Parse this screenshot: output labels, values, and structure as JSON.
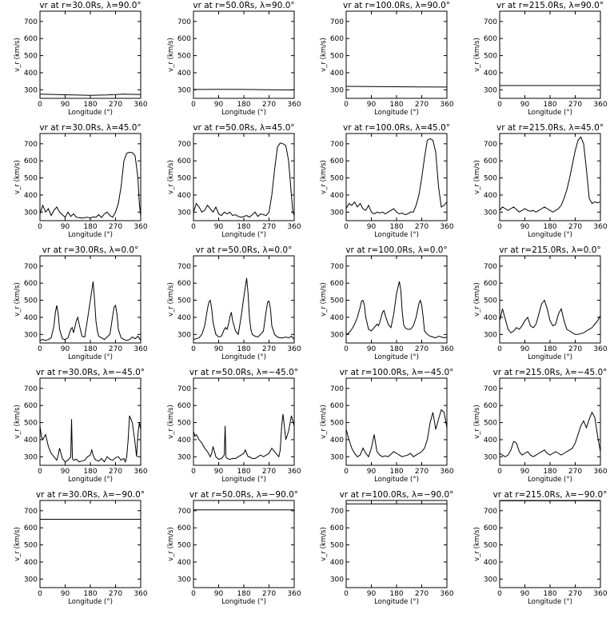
{
  "chart_data": {
    "type": "line",
    "figure": {
      "x_label": "Longitude (°)",
      "y_label": "v_r (km/s)",
      "x_range": [
        0,
        360
      ],
      "y_range": [
        250,
        760
      ],
      "x_ticks": [
        0,
        90,
        180,
        270,
        360
      ],
      "y_ticks": [
        300,
        400,
        500,
        600,
        700
      ],
      "line_color": "#000000"
    },
    "panels": [
      {
        "title": "vr at r=30.0Rs, λ=90.0°",
        "r": "30.0Rs",
        "lat": "90.0°",
        "x": [
          0,
          60,
          120,
          180,
          240,
          300,
          360
        ],
        "y": [
          275,
          272,
          270,
          268,
          270,
          275,
          272
        ]
      },
      {
        "title": "vr at r=50.0Rs, λ=90.0°",
        "r": "50.0Rs",
        "lat": "90.0°",
        "x": [
          0,
          90,
          180,
          270,
          360
        ],
        "y": [
          302,
          303,
          302,
          300,
          299
        ]
      },
      {
        "title": "vr at r=100.0Rs, λ=90.0°",
        "r": "100.0Rs",
        "lat": "90.0°",
        "x": [
          0,
          90,
          180,
          270,
          360
        ],
        "y": [
          320,
          319,
          318,
          317,
          316
        ]
      },
      {
        "title": "vr at r=215.0Rs, λ=90.0°",
        "r": "215.0Rs",
        "lat": "90.0°",
        "x": [
          0,
          360
        ],
        "y": [
          325,
          325
        ]
      },
      {
        "title": "vr at r=30.0Rs, λ=45.0°",
        "r": "30.0Rs",
        "lat": "45.0°",
        "x": [
          0,
          10,
          20,
          30,
          40,
          50,
          60,
          70,
          80,
          90,
          100,
          110,
          120,
          130,
          140,
          150,
          160,
          170,
          180,
          190,
          200,
          210,
          220,
          230,
          240,
          250,
          260,
          270,
          280,
          290,
          300,
          310,
          320,
          330,
          340,
          350,
          355,
          360
        ],
        "y": [
          290,
          340,
          300,
          320,
          280,
          310,
          330,
          300,
          285,
          270,
          300,
          275,
          290,
          270,
          268,
          265,
          268,
          270,
          265,
          272,
          270,
          285,
          268,
          290,
          300,
          280,
          270,
          300,
          350,
          450,
          600,
          645,
          650,
          648,
          630,
          500,
          350,
          275
        ]
      },
      {
        "title": "vr at r=50.0Rs, λ=45.0°",
        "r": "50.0Rs",
        "lat": "45.0°",
        "x": [
          0,
          10,
          20,
          30,
          40,
          50,
          60,
          70,
          80,
          90,
          100,
          110,
          120,
          130,
          140,
          150,
          160,
          170,
          180,
          190,
          200,
          210,
          220,
          230,
          240,
          250,
          260,
          270,
          280,
          290,
          300,
          310,
          320,
          330,
          340,
          350,
          355,
          360
        ],
        "y": [
          300,
          350,
          330,
          300,
          310,
          340,
          320,
          300,
          330,
          290,
          280,
          300,
          290,
          300,
          280,
          285,
          275,
          270,
          275,
          280,
          270,
          285,
          300,
          275,
          290,
          285,
          280,
          300,
          400,
          550,
          680,
          705,
          700,
          690,
          600,
          400,
          300,
          280
        ]
      },
      {
        "title": "vr at r=100.0Rs, λ=45.0°",
        "r": "100.0Rs",
        "lat": "45.0°",
        "x": [
          0,
          10,
          20,
          30,
          40,
          50,
          60,
          70,
          80,
          90,
          100,
          110,
          120,
          130,
          140,
          150,
          160,
          170,
          180,
          190,
          200,
          210,
          220,
          230,
          240,
          250,
          260,
          270,
          280,
          290,
          300,
          310,
          320,
          330,
          340,
          350,
          360
        ],
        "y": [
          320,
          350,
          340,
          360,
          330,
          350,
          320,
          310,
          340,
          300,
          290,
          300,
          295,
          300,
          290,
          300,
          310,
          320,
          300,
          290,
          295,
          285,
          290,
          300,
          300,
          340,
          400,
          500,
          620,
          720,
          730,
          720,
          650,
          450,
          330,
          340,
          360
        ]
      },
      {
        "title": "vr at r=215.0Rs, λ=45.0°",
        "r": "215.0Rs",
        "lat": "45.0°",
        "x": [
          0,
          10,
          20,
          30,
          40,
          50,
          60,
          70,
          80,
          90,
          100,
          110,
          120,
          130,
          140,
          150,
          160,
          170,
          180,
          190,
          200,
          210,
          220,
          230,
          240,
          250,
          260,
          270,
          280,
          290,
          300,
          310,
          320,
          330,
          340,
          350,
          360
        ],
        "y": [
          310,
          330,
          320,
          310,
          320,
          330,
          315,
          300,
          310,
          320,
          310,
          305,
          310,
          300,
          310,
          320,
          330,
          320,
          310,
          300,
          310,
          320,
          340,
          380,
          430,
          500,
          580,
          660,
          720,
          740,
          700,
          550,
          380,
          350,
          360,
          355,
          360
        ]
      },
      {
        "title": "vr at r=30.0Rs, λ=0.0°",
        "r": "30.0Rs",
        "lat": "0.0°",
        "x": [
          0,
          10,
          20,
          30,
          40,
          50,
          55,
          60,
          65,
          70,
          80,
          90,
          100,
          110,
          115,
          120,
          125,
          130,
          135,
          140,
          150,
          160,
          170,
          180,
          190,
          195,
          200,
          205,
          210,
          220,
          230,
          240,
          250,
          260,
          265,
          270,
          275,
          280,
          290,
          300,
          310,
          320,
          330,
          340,
          350,
          360
        ],
        "y": [
          265,
          270,
          265,
          270,
          280,
          350,
          430,
          470,
          420,
          330,
          275,
          270,
          280,
          330,
          340,
          310,
          345,
          380,
          400,
          360,
          290,
          285,
          390,
          500,
          610,
          500,
          380,
          320,
          290,
          280,
          270,
          285,
          300,
          410,
          460,
          470,
          420,
          330,
          280,
          270,
          265,
          270,
          285,
          275,
          290,
          265
        ]
      },
      {
        "title": "vr at r=50.0Rs, λ=0.0°",
        "r": "50.0Rs",
        "lat": "0.0°",
        "x": [
          0,
          10,
          20,
          30,
          40,
          50,
          55,
          60,
          65,
          70,
          80,
          90,
          100,
          110,
          115,
          120,
          125,
          130,
          135,
          140,
          150,
          160,
          170,
          180,
          190,
          195,
          200,
          205,
          210,
          220,
          230,
          240,
          250,
          260,
          265,
          270,
          275,
          280,
          290,
          300,
          310,
          320,
          330,
          340,
          350,
          360
        ],
        "y": [
          270,
          275,
          280,
          300,
          350,
          450,
          490,
          500,
          450,
          370,
          300,
          285,
          290,
          330,
          340,
          330,
          360,
          400,
          430,
          380,
          320,
          300,
          400,
          520,
          630,
          540,
          400,
          330,
          300,
          290,
          285,
          300,
          320,
          440,
          490,
          495,
          450,
          350,
          300,
          285,
          280,
          280,
          285,
          280,
          290,
          270
        ]
      },
      {
        "title": "vr at r=100.0Rs, λ=0.0°",
        "r": "100.0Rs",
        "lat": "0.0°",
        "x": [
          0,
          10,
          20,
          30,
          40,
          50,
          55,
          60,
          65,
          70,
          80,
          90,
          100,
          110,
          115,
          120,
          125,
          130,
          135,
          140,
          150,
          160,
          170,
          180,
          190,
          195,
          200,
          205,
          210,
          220,
          230,
          240,
          250,
          260,
          265,
          270,
          275,
          280,
          290,
          300,
          310,
          320,
          330,
          340,
          350,
          360
        ],
        "y": [
          300,
          310,
          330,
          360,
          400,
          460,
          495,
          500,
          470,
          400,
          330,
          320,
          340,
          360,
          350,
          370,
          400,
          430,
          440,
          410,
          360,
          340,
          420,
          540,
          610,
          560,
          440,
          360,
          340,
          330,
          330,
          350,
          400,
          480,
          500,
          470,
          400,
          320,
          300,
          290,
          285,
          280,
          290,
          285,
          280,
          285
        ]
      },
      {
        "title": "vr at r=215.0Rs, λ=0.0°",
        "r": "215.0Rs",
        "lat": "0.0°",
        "x": [
          0,
          10,
          20,
          30,
          40,
          50,
          60,
          70,
          80,
          90,
          100,
          110,
          120,
          130,
          140,
          150,
          160,
          170,
          180,
          190,
          200,
          210,
          220,
          230,
          240,
          250,
          260,
          270,
          280,
          290,
          300,
          310,
          320,
          330,
          340,
          350,
          360
        ],
        "y": [
          380,
          450,
          390,
          330,
          310,
          320,
          340,
          330,
          350,
          380,
          400,
          350,
          340,
          360,
          420,
          480,
          500,
          450,
          380,
          350,
          360,
          420,
          450,
          380,
          330,
          320,
          310,
          300,
          300,
          305,
          310,
          320,
          330,
          340,
          360,
          380,
          410
        ]
      },
      {
        "title": "vr at r=30.0Rs, λ=−45.0°",
        "r": "30.0Rs",
        "lat": "−45.0°",
        "x": [
          0,
          5,
          10,
          20,
          30,
          40,
          50,
          60,
          65,
          70,
          80,
          90,
          100,
          105,
          110,
          113,
          116,
          120,
          130,
          140,
          150,
          160,
          170,
          180,
          185,
          190,
          195,
          200,
          210,
          220,
          230,
          240,
          250,
          260,
          270,
          280,
          290,
          300,
          305,
          310,
          315,
          320,
          330,
          340,
          345,
          350,
          355,
          360
        ],
        "y": [
          480,
          420,
          400,
          430,
          360,
          320,
          300,
          280,
          310,
          350,
          290,
          270,
          280,
          290,
          300,
          520,
          290,
          280,
          285,
          270,
          275,
          280,
          300,
          310,
          340,
          310,
          290,
          280,
          275,
          290,
          270,
          300,
          285,
          280,
          295,
          300,
          280,
          290,
          270,
          300,
          400,
          540,
          500,
          380,
          300,
          430,
          500,
          460
        ]
      },
      {
        "title": "vr at r=50.0Rs, λ=−45.0°",
        "r": "50.0Rs",
        "lat": "−45.0°",
        "x": [
          0,
          5,
          10,
          20,
          30,
          40,
          50,
          60,
          65,
          70,
          80,
          90,
          100,
          105,
          110,
          113,
          116,
          120,
          130,
          140,
          150,
          160,
          170,
          180,
          185,
          190,
          195,
          200,
          210,
          220,
          230,
          240,
          250,
          260,
          270,
          280,
          290,
          300,
          305,
          310,
          315,
          320,
          330,
          340,
          350,
          360
        ],
        "y": [
          450,
          420,
          430,
          400,
          380,
          350,
          330,
          300,
          320,
          360,
          300,
          285,
          290,
          300,
          310,
          480,
          300,
          290,
          285,
          290,
          290,
          300,
          310,
          320,
          340,
          320,
          300,
          300,
          290,
          290,
          300,
          310,
          300,
          310,
          320,
          350,
          330,
          310,
          300,
          340,
          480,
          550,
          400,
          450,
          540,
          480
        ]
      },
      {
        "title": "vr at r=100.0Rs, λ=−45.0°",
        "r": "100.0Rs",
        "lat": "−45.0°",
        "x": [
          0,
          10,
          20,
          30,
          40,
          50,
          60,
          70,
          80,
          90,
          100,
          110,
          120,
          130,
          140,
          150,
          160,
          170,
          180,
          190,
          200,
          210,
          220,
          230,
          240,
          250,
          260,
          270,
          280,
          290,
          300,
          310,
          320,
          330,
          340,
          350,
          360
        ],
        "y": [
          460,
          400,
          350,
          320,
          300,
          310,
          350,
          320,
          300,
          350,
          430,
          330,
          310,
          300,
          305,
          300,
          315,
          330,
          320,
          310,
          300,
          305,
          310,
          320,
          300,
          310,
          320,
          330,
          350,
          400,
          500,
          560,
          460,
          520,
          575,
          560,
          470
        ]
      },
      {
        "title": "vr at r=215.0Rs, λ=−45.0°",
        "r": "215.0Rs",
        "lat": "−45.0°",
        "x": [
          0,
          10,
          20,
          30,
          40,
          50,
          60,
          70,
          80,
          90,
          100,
          110,
          120,
          130,
          140,
          150,
          160,
          170,
          180,
          190,
          200,
          210,
          220,
          230,
          240,
          250,
          260,
          270,
          280,
          290,
          300,
          310,
          320,
          330,
          340,
          350,
          360
        ],
        "y": [
          320,
          310,
          300,
          310,
          340,
          390,
          380,
          330,
          310,
          320,
          330,
          310,
          300,
          310,
          320,
          330,
          340,
          320,
          310,
          320,
          330,
          320,
          310,
          320,
          330,
          340,
          350,
          380,
          430,
          480,
          510,
          470,
          520,
          560,
          530,
          420,
          330
        ]
      },
      {
        "title": "vr at r=30.0Rs, λ=−90.0°",
        "r": "30.0Rs",
        "lat": "−90.0°",
        "x": [
          0,
          360
        ],
        "y": [
          650,
          650
        ]
      },
      {
        "title": "vr at r=50.0Rs, λ=−90.0°",
        "r": "50.0Rs",
        "lat": "−90.0°",
        "x": [
          0,
          360
        ],
        "y": [
          705,
          705
        ]
      },
      {
        "title": "vr at r=100.0Rs, λ=−90.0°",
        "r": "100.0Rs",
        "lat": "−90.0°",
        "x": [
          0,
          360
        ],
        "y": [
          740,
          740
        ]
      },
      {
        "title": "vr at r=215.0Rs, λ=−90.0°",
        "r": "215.0Rs",
        "lat": "−90.0°",
        "x": [
          0,
          360
        ],
        "y": [
          758,
          758
        ]
      }
    ]
  }
}
